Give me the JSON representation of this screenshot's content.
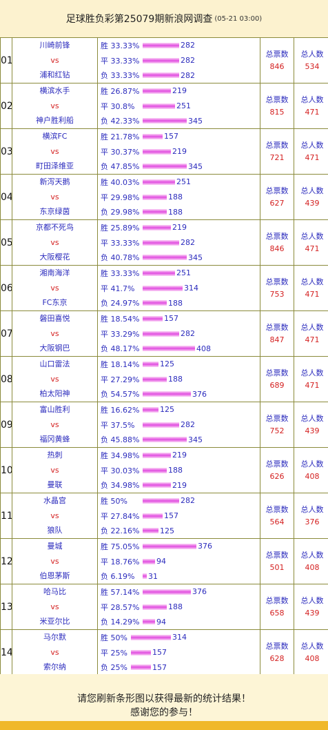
{
  "header": {
    "title": "足球胜负彩第25079期新浪网调查",
    "time": "(05-21 03:00)"
  },
  "labels": {
    "win": "胜",
    "draw": "平",
    "lose": "负",
    "vs": "vs",
    "total_votes": "总票数",
    "total_people": "总人数"
  },
  "matches": [
    {
      "num": "01",
      "home": "川崎前锋",
      "away": "浦和红钻",
      "win_pct": "33.33%",
      "draw_pct": "33.33%",
      "lose_pct": "33.33%",
      "win_cnt": "282",
      "draw_cnt": "282",
      "lose_cnt": "282",
      "win_frac": 0.75,
      "draw_frac": 0.75,
      "lose_frac": 0.75,
      "votes": "846",
      "people": "534"
    },
    {
      "num": "02",
      "home": "横滨水手",
      "away": "神户胜利船",
      "win_pct": "26.87%",
      "draw_pct": "30.8%",
      "lose_pct": "42.33%",
      "win_cnt": "219",
      "draw_cnt": "251",
      "lose_cnt": "345",
      "win_frac": 0.58,
      "draw_frac": 0.67,
      "lose_frac": 0.92,
      "votes": "815",
      "people": "471"
    },
    {
      "num": "03",
      "home": "横滨FC",
      "away": "町田泽维亚",
      "win_pct": "21.78%",
      "draw_pct": "30.37%",
      "lose_pct": "47.85%",
      "win_cnt": "157",
      "draw_cnt": "219",
      "lose_cnt": "345",
      "win_frac": 0.42,
      "draw_frac": 0.58,
      "lose_frac": 0.92,
      "votes": "721",
      "people": "471"
    },
    {
      "num": "04",
      "home": "新泻天鹅",
      "away": "东京绿茵",
      "win_pct": "40.03%",
      "draw_pct": "29.98%",
      "lose_pct": "29.98%",
      "win_cnt": "251",
      "draw_cnt": "188",
      "lose_cnt": "188",
      "win_frac": 0.67,
      "draw_frac": 0.5,
      "lose_frac": 0.5,
      "votes": "627",
      "people": "439"
    },
    {
      "num": "05",
      "home": "京都不死鸟",
      "away": "大阪樱花",
      "win_pct": "25.89%",
      "draw_pct": "33.33%",
      "lose_pct": "40.78%",
      "win_cnt": "219",
      "draw_cnt": "282",
      "lose_cnt": "345",
      "win_frac": 0.58,
      "draw_frac": 0.75,
      "lose_frac": 0.92,
      "votes": "846",
      "people": "471"
    },
    {
      "num": "06",
      "home": "湘南海洋",
      "away": "FC东京",
      "win_pct": "33.33%",
      "draw_pct": "41.7%",
      "lose_pct": "24.97%",
      "win_cnt": "251",
      "draw_cnt": "314",
      "lose_cnt": "188",
      "win_frac": 0.67,
      "draw_frac": 0.83,
      "lose_frac": 0.5,
      "votes": "753",
      "people": "471"
    },
    {
      "num": "07",
      "home": "磐田喜悦",
      "away": "大阪钢巴",
      "win_pct": "18.54%",
      "draw_pct": "33.29%",
      "lose_pct": "48.17%",
      "win_cnt": "157",
      "draw_cnt": "282",
      "lose_cnt": "408",
      "win_frac": 0.42,
      "draw_frac": 0.75,
      "lose_frac": 1.08,
      "votes": "847",
      "people": "471"
    },
    {
      "num": "08",
      "home": "山口雷法",
      "away": "柏太阳神",
      "win_pct": "18.14%",
      "draw_pct": "27.29%",
      "lose_pct": "54.57%",
      "win_cnt": "125",
      "draw_cnt": "188",
      "lose_cnt": "376",
      "win_frac": 0.33,
      "draw_frac": 0.5,
      "lose_frac": 1.0,
      "votes": "689",
      "people": "471"
    },
    {
      "num": "09",
      "home": "富山胜利",
      "away": "福冈黄蜂",
      "win_pct": "16.62%",
      "draw_pct": "37.5%",
      "lose_pct": "45.88%",
      "win_cnt": "125",
      "draw_cnt": "282",
      "lose_cnt": "345",
      "win_frac": 0.33,
      "draw_frac": 0.75,
      "lose_frac": 0.92,
      "votes": "752",
      "people": "439"
    },
    {
      "num": "10",
      "home": "热刺",
      "away": "曼联",
      "win_pct": "34.98%",
      "draw_pct": "30.03%",
      "lose_pct": "34.98%",
      "win_cnt": "219",
      "draw_cnt": "188",
      "lose_cnt": "219",
      "win_frac": 0.58,
      "draw_frac": 0.5,
      "lose_frac": 0.58,
      "votes": "626",
      "people": "408"
    },
    {
      "num": "11",
      "home": "水晶宫",
      "away": "狼队",
      "win_pct": "50%",
      "draw_pct": "27.84%",
      "lose_pct": "22.16%",
      "win_cnt": "282",
      "draw_cnt": "157",
      "lose_cnt": "125",
      "win_frac": 0.75,
      "draw_frac": 0.42,
      "lose_frac": 0.33,
      "votes": "564",
      "people": "376"
    },
    {
      "num": "12",
      "home": "曼城",
      "away": "伯恩茅斯",
      "win_pct": "75.05%",
      "draw_pct": "18.76%",
      "lose_pct": "6.19%",
      "win_cnt": "376",
      "draw_cnt": "94",
      "lose_cnt": "31",
      "win_frac": 1.12,
      "draw_frac": 0.25,
      "lose_frac": 0.08,
      "votes": "501",
      "people": "408"
    },
    {
      "num": "13",
      "home": "哈马比",
      "away": "米亚尔比",
      "win_pct": "57.14%",
      "draw_pct": "28.57%",
      "lose_pct": "14.29%",
      "win_cnt": "376",
      "draw_cnt": "188",
      "lose_cnt": "94",
      "win_frac": 1.0,
      "draw_frac": 0.5,
      "lose_frac": 0.25,
      "votes": "658",
      "people": "439"
    },
    {
      "num": "14",
      "home": "马尔默",
      "away": "索尔纳",
      "win_pct": "50%",
      "draw_pct": "25%",
      "lose_pct": "25%",
      "win_cnt": "314",
      "draw_cnt": "157",
      "lose_cnt": "157",
      "win_frac": 0.83,
      "draw_frac": 0.42,
      "lose_frac": 0.42,
      "votes": "628",
      "people": "408",
      "compact": true
    }
  ],
  "footer": {
    "line1": "请您刷新条形图以获得最新的统计结果！",
    "line2": "感谢您的参与！"
  },
  "colors": {
    "bar": "#e14de0",
    "team": "#2b2bbd",
    "accent": "#d42020",
    "background": "#fdf5d6"
  }
}
